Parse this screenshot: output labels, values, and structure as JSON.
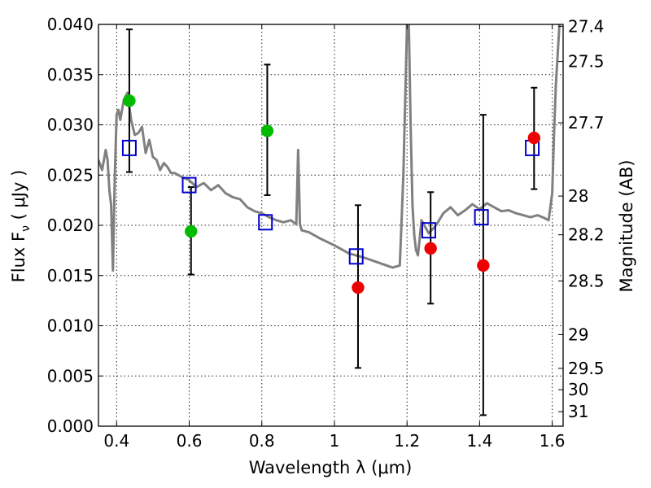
{
  "chart_data": {
    "type": "scatter",
    "title": "",
    "xlabel": "Wavelength  λ (μm)",
    "ylabel": "Flux  F",
    "ylabel_subscript": "ν",
    "ylabel_unit": "  ( μJy )",
    "y2label": "Magnitude (AB)",
    "xlim": [
      0.35,
      1.63
    ],
    "ylim": [
      0.0,
      0.04
    ],
    "grid": true,
    "x_ticks": [
      0.4,
      0.6,
      0.8,
      1.0,
      1.2,
      1.4,
      1.6
    ],
    "x_tick_labels": [
      "0.4",
      "0.6",
      "0.8",
      "1",
      "1.2",
      "1.4",
      "1.6"
    ],
    "y_ticks": [
      0.0,
      0.005,
      0.01,
      0.015,
      0.02,
      0.025,
      0.03,
      0.035,
      0.04
    ],
    "y_tick_labels": [
      "0.000",
      "0.005",
      "0.010",
      "0.015",
      "0.020",
      "0.025",
      "0.030",
      "0.035",
      "0.040"
    ],
    "y2_tick_labels": [
      "27.4",
      "27.5",
      "27.7",
      "28",
      "28.2",
      "28.5",
      "29",
      "29.5",
      "30",
      "31"
    ],
    "colors": {
      "template": "#808080",
      "model_box": "#0000cc",
      "green_points": "#00bb00",
      "red_points": "#ee0000",
      "error_bars": "#000000"
    },
    "template_spectrum": {
      "x": [
        0.35,
        0.36,
        0.37,
        0.375,
        0.38,
        0.385,
        0.39,
        0.395,
        0.4,
        0.405,
        0.41,
        0.42,
        0.43,
        0.44,
        0.45,
        0.46,
        0.47,
        0.48,
        0.49,
        0.5,
        0.51,
        0.52,
        0.53,
        0.54,
        0.55,
        0.56,
        0.58,
        0.6,
        0.62,
        0.64,
        0.66,
        0.68,
        0.7,
        0.72,
        0.74,
        0.76,
        0.78,
        0.8,
        0.82,
        0.84,
        0.86,
        0.88,
        0.895,
        0.9,
        0.905,
        0.91,
        0.93,
        0.96,
        1.0,
        1.04,
        1.08,
        1.12,
        1.16,
        1.18,
        1.19,
        1.2,
        1.205,
        1.21,
        1.215,
        1.22,
        1.225,
        1.23,
        1.24,
        1.26,
        1.28,
        1.3,
        1.32,
        1.34,
        1.36,
        1.38,
        1.4,
        1.42,
        1.44,
        1.46,
        1.48,
        1.5,
        1.52,
        1.54,
        1.56,
        1.58,
        1.59,
        1.6,
        1.605,
        1.61,
        1.615,
        1.62
      ],
      "y": [
        0.0265,
        0.0255,
        0.0275,
        0.0265,
        0.0235,
        0.022,
        0.0155,
        0.025,
        0.031,
        0.0315,
        0.0305,
        0.0325,
        0.0332,
        0.0305,
        0.029,
        0.0292,
        0.0298,
        0.0272,
        0.0285,
        0.0268,
        0.0265,
        0.0255,
        0.0262,
        0.0258,
        0.0252,
        0.0252,
        0.0248,
        0.0245,
        0.0238,
        0.0242,
        0.0235,
        0.024,
        0.0232,
        0.0228,
        0.0226,
        0.0218,
        0.0214,
        0.0212,
        0.0208,
        0.0205,
        0.0203,
        0.0205,
        0.0201,
        0.0275,
        0.0201,
        0.0195,
        0.0193,
        0.0187,
        0.018,
        0.0172,
        0.0168,
        0.0163,
        0.0158,
        0.016,
        0.025,
        0.04,
        0.04,
        0.03,
        0.022,
        0.019,
        0.0175,
        0.017,
        0.0205,
        0.0192,
        0.02,
        0.0212,
        0.0218,
        0.021,
        0.0215,
        0.0221,
        0.0216,
        0.0222,
        0.0218,
        0.0214,
        0.0215,
        0.0212,
        0.021,
        0.0208,
        0.021,
        0.0207,
        0.0205,
        0.0232,
        0.029,
        0.034,
        0.037,
        0.04
      ]
    },
    "series": [
      {
        "marker": "open-square",
        "color": "#0000cc",
        "x": [
          0.435,
          0.6,
          0.81,
          1.06,
          1.26,
          1.405,
          1.545
        ],
        "y": [
          0.0277,
          0.024,
          0.0203,
          0.0169,
          0.0195,
          0.0208,
          0.0277
        ]
      },
      {
        "marker": "circle",
        "color": "#00bb00",
        "x": [
          0.435,
          0.605,
          0.815
        ],
        "y": [
          0.0324,
          0.0194,
          0.0294
        ]
      },
      {
        "marker": "circle",
        "color": "#ee0000",
        "x": [
          1.065,
          1.265,
          1.41,
          1.55
        ],
        "y": [
          0.0138,
          0.0177,
          0.016,
          0.0287
        ]
      }
    ],
    "error_bars": [
      {
        "x": 0.435,
        "low": 0.0253,
        "high": 0.0395
      },
      {
        "x": 0.605,
        "low": 0.0151,
        "high": 0.0238
      },
      {
        "x": 0.815,
        "low": 0.023,
        "high": 0.036
      },
      {
        "x": 1.065,
        "low": 0.0058,
        "high": 0.022
      },
      {
        "x": 1.265,
        "low": 0.0122,
        "high": 0.0233
      },
      {
        "x": 1.41,
        "low": 0.0011,
        "high": 0.031
      },
      {
        "x": 1.55,
        "low": 0.0236,
        "high": 0.0337
      }
    ]
  }
}
